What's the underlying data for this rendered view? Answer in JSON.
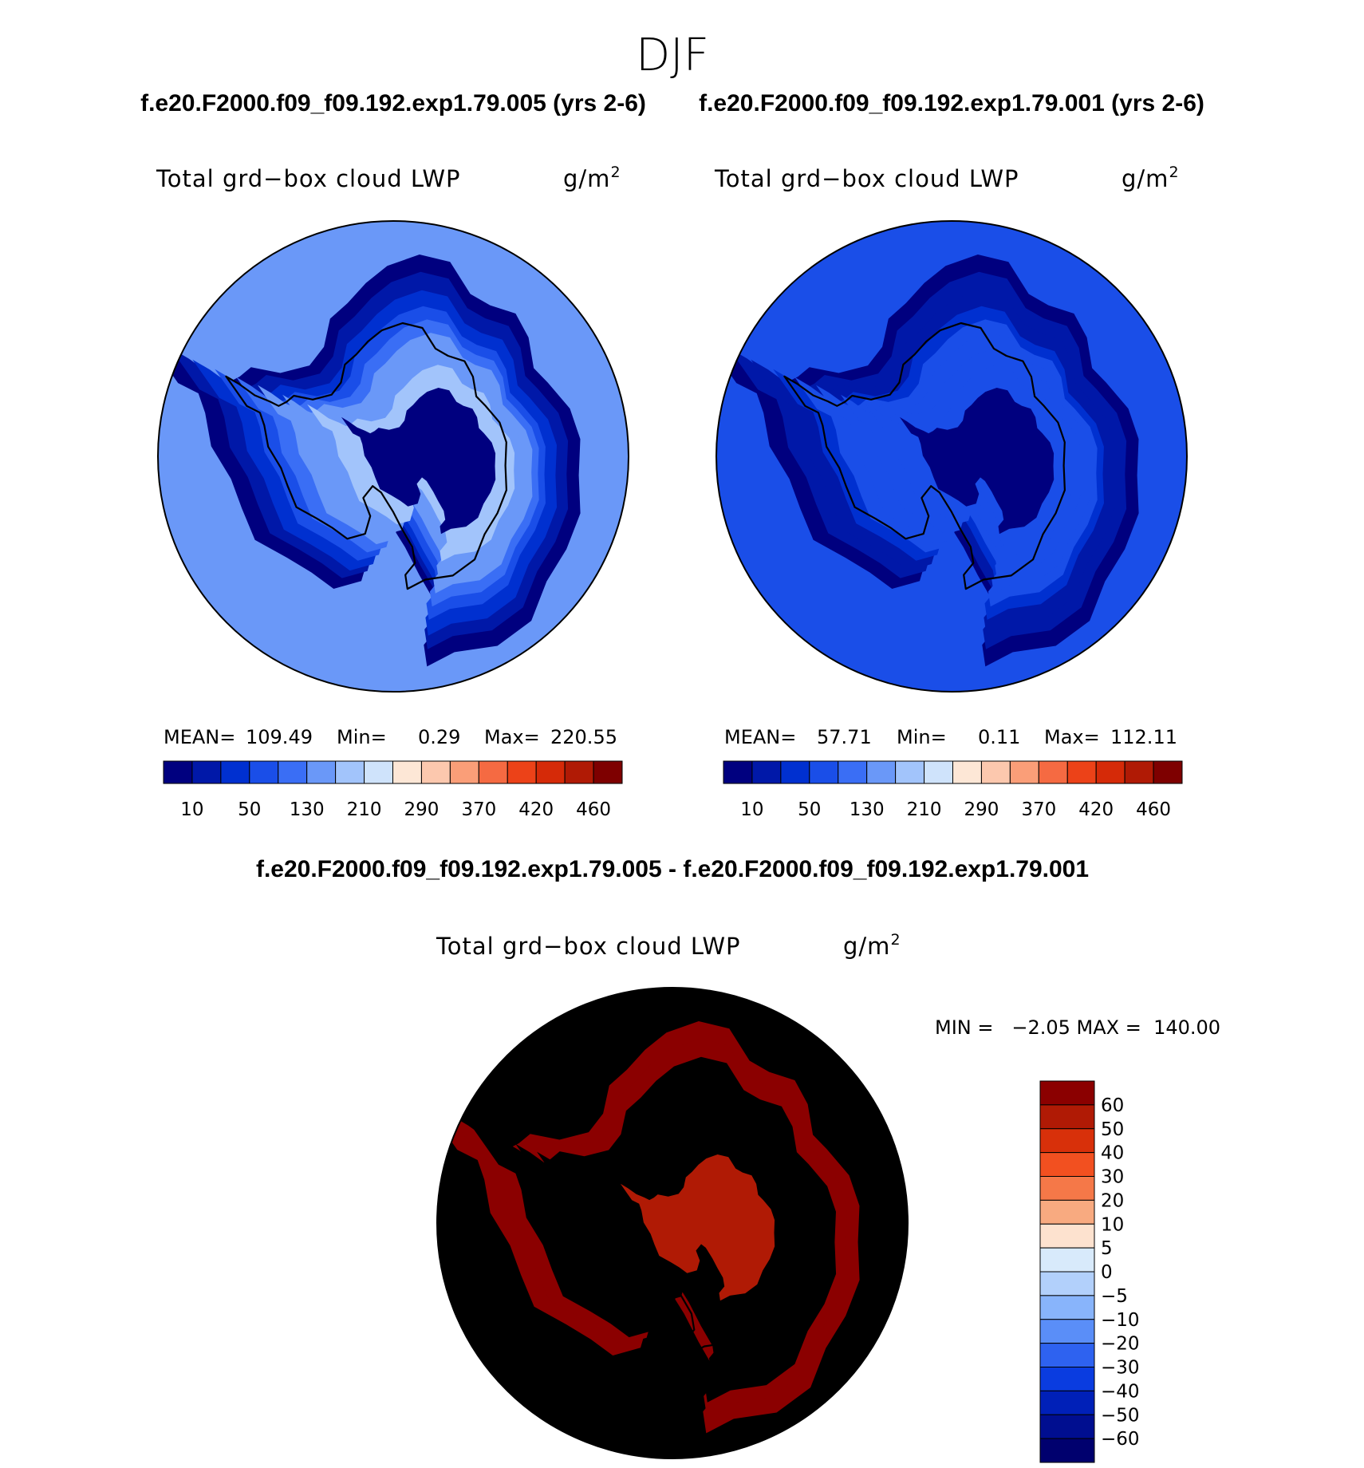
{
  "figure": {
    "title": "DJF"
  },
  "chart_data": [
    {
      "type": "heatmap",
      "projection": "south-polar-stereographic",
      "case_title": "f.e20.F2000.f09_f09.192.exp1.79.005 (yrs 2-6)",
      "variable": "Total grd−box cloud LWP",
      "units": "g/m",
      "units_exp": "2",
      "mean_label": "MEAN=",
      "mean": "109.49",
      "min_label": "Min=",
      "min": "0.29",
      "max_label": "Max=",
      "max": "220.55",
      "colorbar_ticks": [
        "10",
        "50",
        "130",
        "210",
        "290",
        "370",
        "420",
        "460"
      ],
      "field": {
        "pole_level": 0,
        "ring_levels": [
          0,
          1,
          2,
          3,
          4,
          5,
          5,
          6
        ],
        "ocean_level": 5
      }
    },
    {
      "type": "heatmap",
      "projection": "south-polar-stereographic",
      "case_title": "f.e20.F2000.f09_f09.192.exp1.79.001 (yrs 2-6)",
      "variable": "Total grd−box cloud LWP",
      "units": "g/m",
      "units_exp": "2",
      "mean_label": "MEAN=",
      "mean": "57.71",
      "min_label": "Min=",
      "min": "0.11",
      "max_label": "Max=",
      "max": "112.11",
      "colorbar_ticks": [
        "10",
        "50",
        "130",
        "210",
        "290",
        "370",
        "420",
        "460"
      ],
      "field": {
        "pole_level": 0,
        "ring_levels": [
          0,
          1,
          1,
          2,
          3,
          3,
          3,
          3
        ],
        "ocean_level": 3
      }
    },
    {
      "type": "heatmap",
      "projection": "south-polar-stereographic",
      "case_title": "f.e20.F2000.f09_f09.192.exp1.79.005 - f.e20.F2000.f09_f09.192.exp1.79.001",
      "variable": "Total grd−box cloud LWP",
      "units": "g/m",
      "units_exp": "2",
      "minmax_text": "MIN =   −2.05 MAX =  140.00",
      "colorbar_ticks": [
        "60",
        "50",
        "40",
        "30",
        "20",
        "10",
        "5",
        "0",
        "−5",
        "−10",
        "−20",
        "−30",
        "−40",
        "−50",
        "−60"
      ],
      "field": {
        "pole_level": 7,
        "ring_levels": [
          8,
          8,
          9,
          10,
          11,
          12,
          13,
          14
        ],
        "ocean_level": 15
      }
    }
  ],
  "colors": {
    "abs_colorbar": [
      "#00007f",
      "#0018a8",
      "#0030d0",
      "#1a4ee8",
      "#3a6ef5",
      "#6a98f8",
      "#a2c4fb",
      "#cfe3fb",
      "#fde7d6",
      "#fcc8ae",
      "#fa9e78",
      "#f56a42",
      "#ec4218",
      "#d52a08",
      "#b01a05",
      "#7e0000"
    ],
    "diff_colorbar": [
      "#8b0000",
      "#b01a05",
      "#d8300a",
      "#f25020",
      "#f57848",
      "#f8aa80",
      "#fde2cf",
      "#d8eafb",
      "#b2d0fb",
      "#88b4fb",
      "#5a8ef8",
      "#2e62f0",
      "#0a3ce0",
      "#0020b8",
      "#000e90",
      "#00006e"
    ],
    "diff_levels": [
      "#d8eafb",
      "#fde2cf",
      "#fbd0b6",
      "#f8aa80",
      "#f57848",
      "#f25020",
      "#d8300a",
      "#b01a05",
      "#8b0000"
    ]
  }
}
